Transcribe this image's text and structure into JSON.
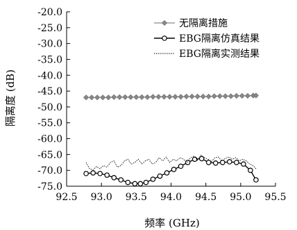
{
  "chart_data": {
    "type": "line",
    "xlabel": "频率 (GHz)",
    "ylabel": "隔离度 (dB)",
    "xlim": [
      92.5,
      95.5
    ],
    "ylim": [
      -75.0,
      -20.0
    ],
    "x_ticks": [
      "92.5",
      "93.0",
      "93.5",
      "94.0",
      "94.5",
      "95.0",
      "95.5"
    ],
    "y_ticks": [
      "-20.0",
      "-25.0",
      "-30.0",
      "-35.0",
      "-40.0",
      "-45.0",
      "-50.0",
      "-55.0",
      "-60.0",
      "-65.0",
      "-70.0",
      "-75.0"
    ],
    "grid": false,
    "legend_position": "top-right",
    "series": [
      {
        "name": "无隔离措施",
        "style": "diamond-markers",
        "x": [
          92.78,
          92.86,
          92.94,
          93.02,
          93.1,
          93.18,
          93.26,
          93.34,
          93.42,
          93.5,
          93.58,
          93.66,
          93.74,
          93.82,
          93.9,
          93.98,
          94.06,
          94.14,
          94.22,
          94.3,
          94.38,
          94.46,
          94.54,
          94.62,
          94.7,
          94.78,
          94.86,
          94.94,
          95.02,
          95.1,
          95.18,
          95.22
        ],
        "values": [
          -47.0,
          -47.0,
          -47.0,
          -47.0,
          -47.0,
          -46.9,
          -46.9,
          -46.9,
          -46.9,
          -46.9,
          -46.9,
          -46.9,
          -46.8,
          -46.8,
          -46.8,
          -46.8,
          -46.8,
          -46.8,
          -46.7,
          -46.7,
          -46.7,
          -46.7,
          -46.7,
          -46.6,
          -46.6,
          -46.6,
          -46.6,
          -46.5,
          -46.5,
          -46.5,
          -46.4,
          -46.4
        ]
      },
      {
        "name": "EBG隔离仿真结果",
        "style": "circle-markers",
        "x": [
          92.78,
          92.88,
          92.98,
          93.08,
          93.18,
          93.28,
          93.38,
          93.48,
          93.56,
          93.64,
          93.74,
          93.84,
          93.94,
          94.04,
          94.14,
          94.24,
          94.34,
          94.44,
          94.54,
          94.64,
          94.74,
          94.84,
          94.94,
          95.04,
          95.14,
          95.22
        ],
        "values": [
          -71.0,
          -70.8,
          -71.0,
          -71.5,
          -72.3,
          -73.0,
          -73.8,
          -74.2,
          -74.2,
          -73.8,
          -72.8,
          -71.8,
          -70.8,
          -69.7,
          -68.7,
          -67.5,
          -66.5,
          -66.3,
          -67.5,
          -67.7,
          -67.5,
          -67.3,
          -67.5,
          -68.0,
          -70.0,
          -73.0
        ]
      },
      {
        "name": "EBG隔离实测结果",
        "style": "dotted",
        "x": [
          92.78,
          92.83,
          92.88,
          92.93,
          92.98,
          93.03,
          93.08,
          93.13,
          93.18,
          93.23,
          93.28,
          93.33,
          93.38,
          93.43,
          93.48,
          93.53,
          93.58,
          93.63,
          93.68,
          93.73,
          93.78,
          93.83,
          93.88,
          93.93,
          93.98,
          94.03,
          94.08,
          94.13,
          94.18,
          94.23,
          94.28,
          94.33,
          94.38,
          94.43,
          94.48,
          94.53,
          94.58,
          94.63,
          94.68,
          94.73,
          94.78,
          94.83,
          94.88,
          94.93,
          94.98,
          95.03,
          95.08,
          95.13,
          95.18,
          95.22
        ],
        "values": [
          -67.5,
          -69.5,
          -69.8,
          -68.8,
          -69.5,
          -68.5,
          -69.0,
          -67.5,
          -67.0,
          -69.0,
          -68.5,
          -67.0,
          -66.5,
          -68.0,
          -67.5,
          -66.5,
          -68.0,
          -67.0,
          -66.5,
          -68.0,
          -67.5,
          -66.0,
          -67.0,
          -65.8,
          -67.5,
          -66.5,
          -67.0,
          -66.0,
          -66.5,
          -67.5,
          -66.0,
          -65.5,
          -66.8,
          -65.2,
          -66.0,
          -66.5,
          -67.2,
          -66.0,
          -65.8,
          -67.0,
          -66.2,
          -65.8,
          -66.5,
          -66.0,
          -67.0,
          -66.5,
          -67.0,
          -68.0,
          -68.5,
          -69.5
        ]
      }
    ]
  }
}
